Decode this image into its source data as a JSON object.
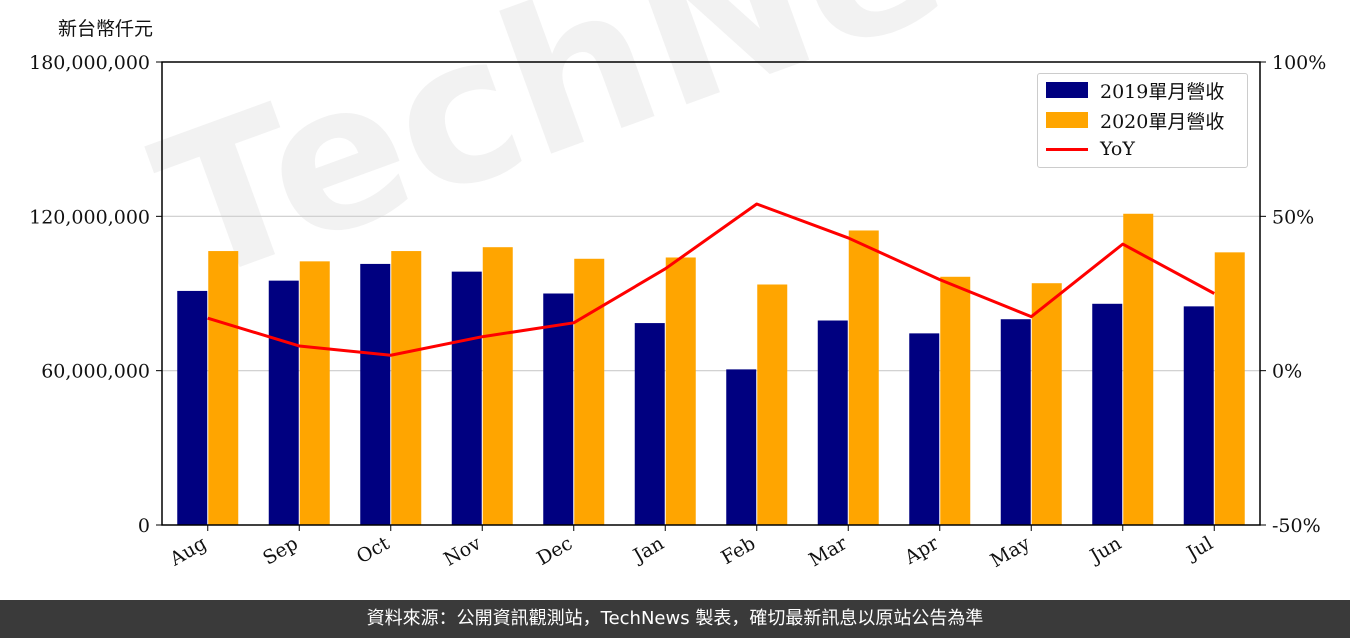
{
  "unit_label": "新台幣仟元",
  "footer": "資料來源：公開資訊觀測站，TechNews 製表，確切最新訊息以原站公告為準",
  "watermark": "TechNews",
  "colors": {
    "series_2019": "#000080",
    "series_2020": "#FFA500",
    "yoy": "#FF0000"
  },
  "chart_data": {
    "type": "bar",
    "categories": [
      "Aug",
      "Sep",
      "Oct",
      "Nov",
      "Dec",
      "Jan",
      "Feb",
      "Mar",
      "Apr",
      "May",
      "Jun",
      "Jul"
    ],
    "series": [
      {
        "name": "2019單月營收",
        "values": [
          91000000,
          95000000,
          101500000,
          98500000,
          90000000,
          78500000,
          60500000,
          79500000,
          74500000,
          80000000,
          86000000,
          85000000
        ]
      },
      {
        "name": "2020單月營收",
        "values": [
          106500000,
          102500000,
          106500000,
          108000000,
          103500000,
          104000000,
          93500000,
          114500000,
          96500000,
          94000000,
          121000000,
          106000000
        ]
      }
    ],
    "line_series": {
      "name": "YoY",
      "axis": "right",
      "values": [
        0.17,
        0.08,
        0.05,
        0.11,
        0.155,
        0.33,
        0.54,
        0.43,
        0.295,
        0.175,
        0.41,
        0.25
      ]
    },
    "ylim": [
      0,
      180000000
    ],
    "yticks": [
      "0",
      "60,000,000",
      "120,000,000",
      "180,000,000"
    ],
    "y2lim": [
      -0.5,
      1.0
    ],
    "y2ticks": [
      "-50%",
      "0%",
      "50%",
      "100%"
    ],
    "grid": "horizontal",
    "legend": "top-right"
  }
}
